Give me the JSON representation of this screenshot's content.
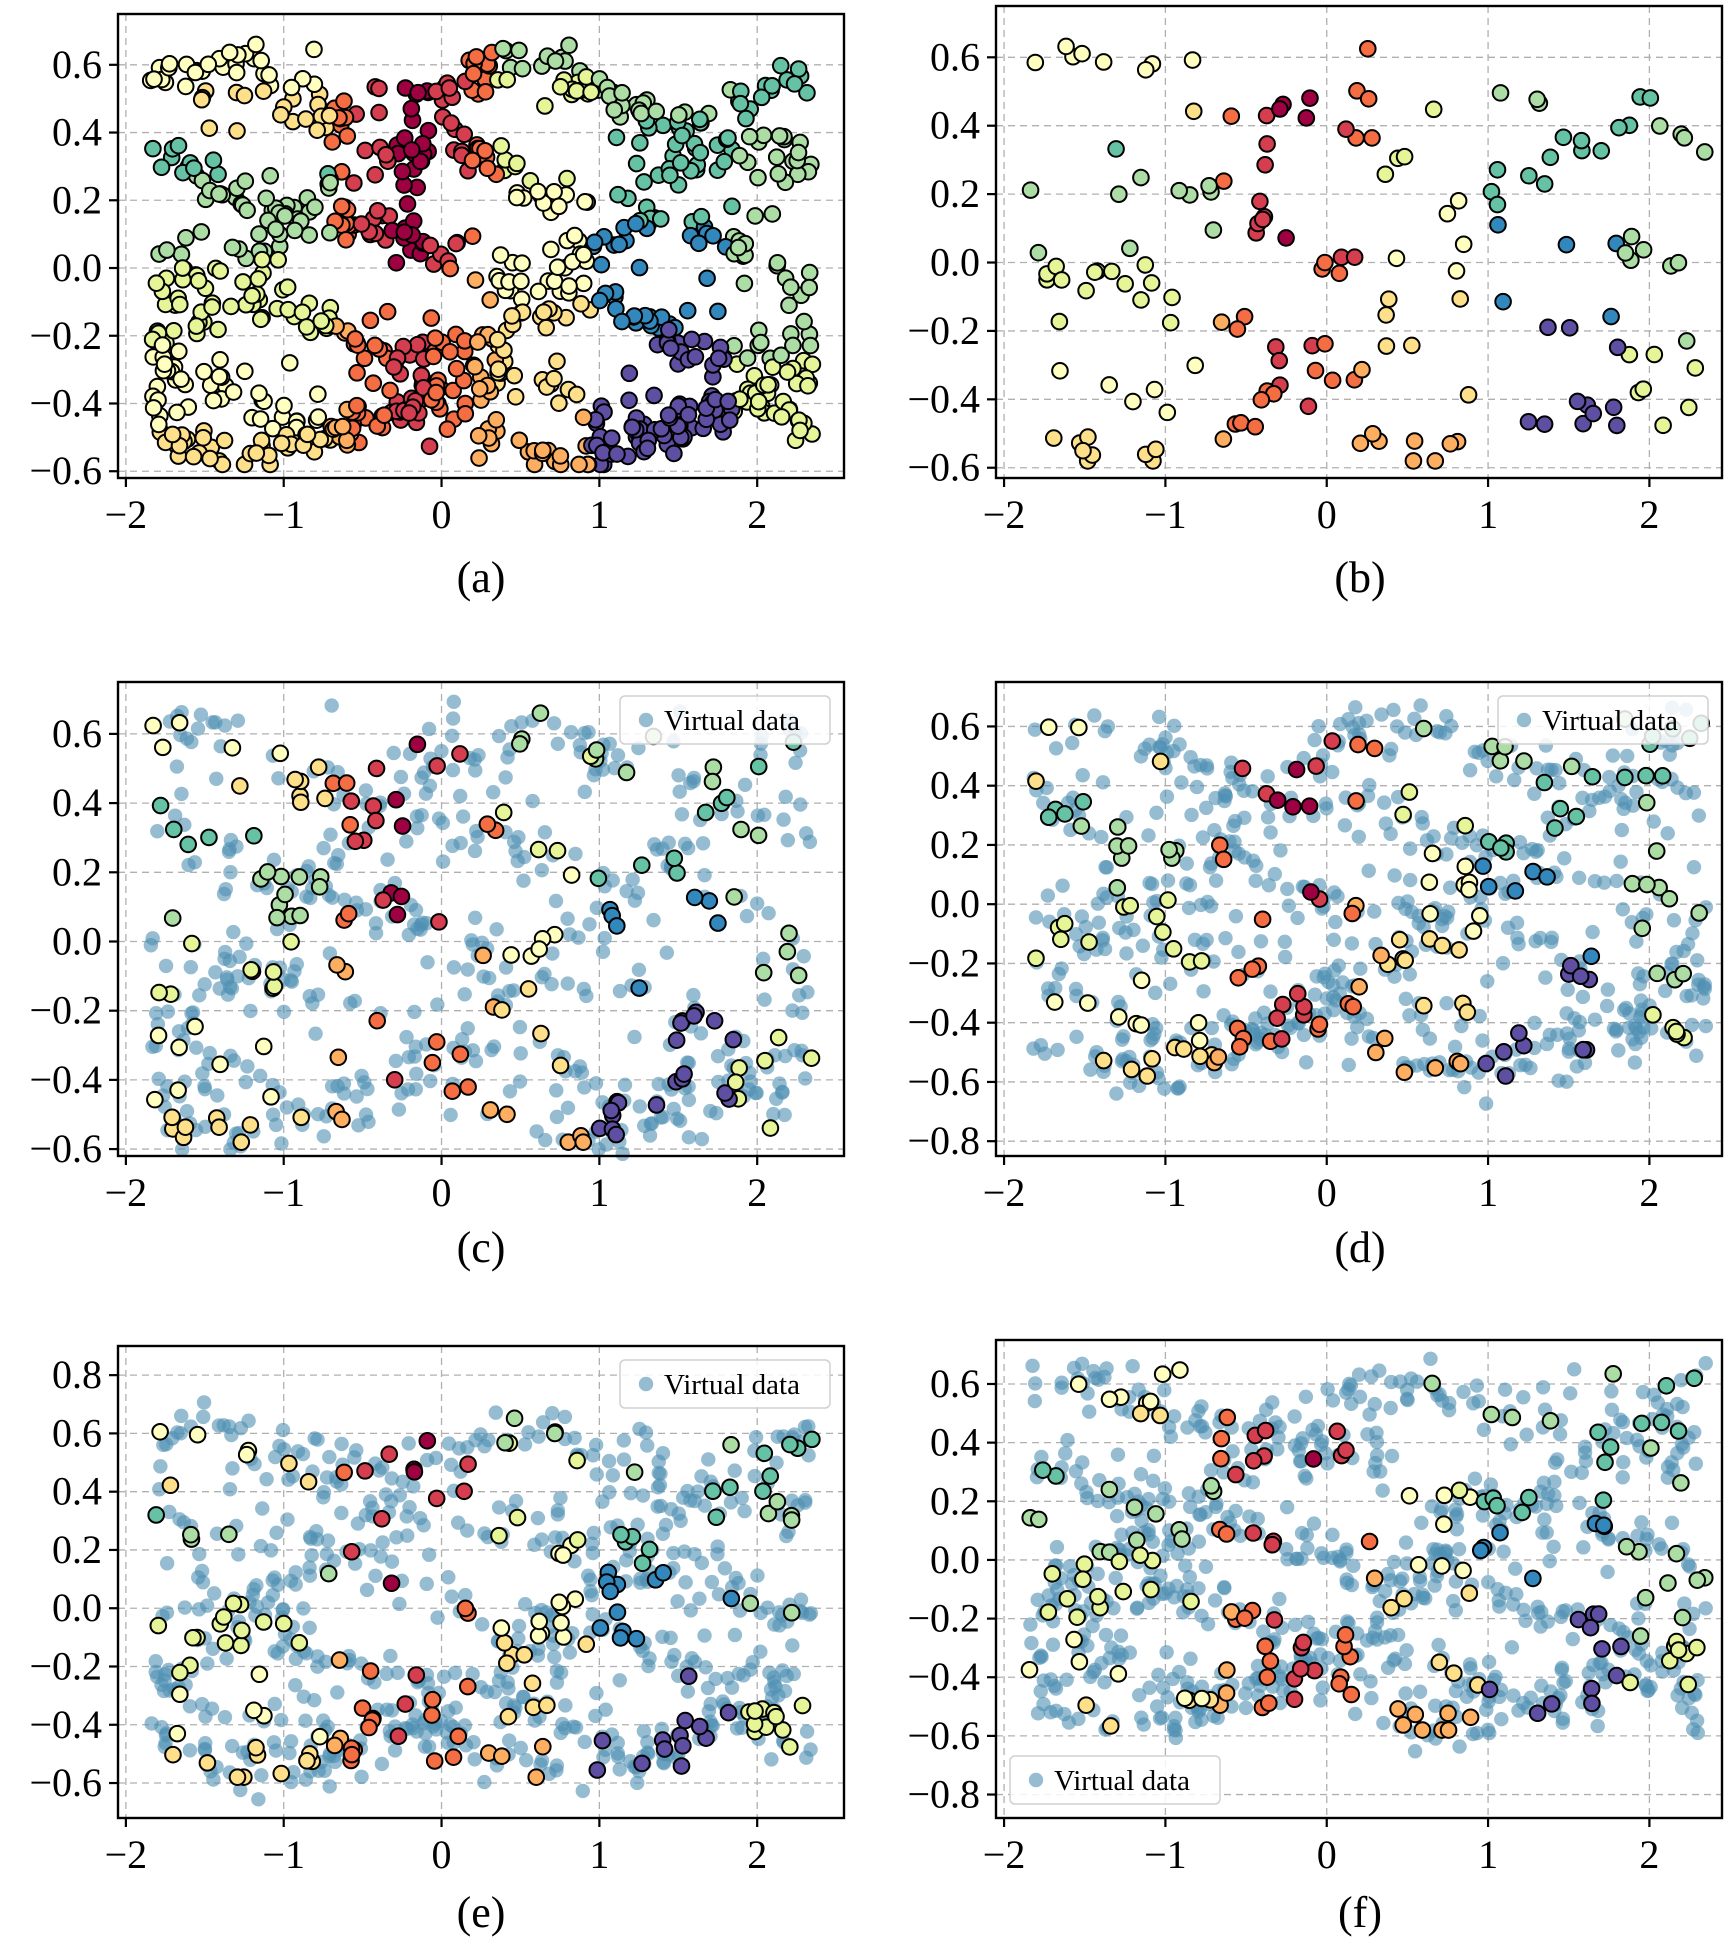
{
  "colors": {
    "virtual_fill": "#4f90b3",
    "virtual_alpha": 0.6,
    "point_edge": "#000000",
    "palette": [
      "#9e0142",
      "#d53e4f",
      "#f46d43",
      "#fdae61",
      "#fee08b",
      "#ffffbf",
      "#e6f598",
      "#abdda4",
      "#66c2a5",
      "#3288bd",
      "#5e4fa2"
    ]
  },
  "chart_data": [
    {
      "type": "scatter",
      "caption": "(a)",
      "legend": null,
      "xlim": [
        -2.05,
        2.55
      ],
      "ylim": [
        -0.62,
        0.75
      ],
      "xticks": [
        -2,
        -1,
        0,
        1,
        2
      ],
      "xtick_labels": [
        "−2",
        "−1",
        "0",
        "1",
        "2"
      ],
      "yticks": [
        -0.6,
        -0.4,
        -0.2,
        0.0,
        0.2,
        0.4,
        0.6
      ],
      "ytick_labels": [
        "−0.6",
        "−0.4",
        "−0.2",
        "0.0",
        "0.2",
        "0.4",
        "0.6"
      ],
      "grid": true,
      "labeled_points": 900,
      "virtual_points": 0,
      "seed": 11
    },
    {
      "type": "scatter",
      "caption": "(b)",
      "legend": null,
      "xlim": [
        -2.05,
        2.45
      ],
      "ylim": [
        -0.63,
        0.75
      ],
      "xticks": [
        -2,
        -1,
        0,
        1,
        2
      ],
      "xtick_labels": [
        "−2",
        "−1",
        "0",
        "1",
        "2"
      ],
      "yticks": [
        -0.6,
        -0.4,
        -0.2,
        0.0,
        0.2,
        0.4,
        0.6
      ],
      "ytick_labels": [
        "−0.6",
        "−0.4",
        "−0.2",
        "0.0",
        "0.2",
        "0.4",
        "0.6"
      ],
      "grid": true,
      "labeled_points": 170,
      "virtual_points": 0,
      "seed": 23
    },
    {
      "type": "scatter",
      "caption": "(c)",
      "legend": {
        "label": "Virtual data",
        "position": "upper right"
      },
      "xlim": [
        -2.05,
        2.55
      ],
      "ylim": [
        -0.62,
        0.75
      ],
      "xticks": [
        -2,
        -1,
        0,
        1,
        2
      ],
      "xtick_labels": [
        "−2",
        "−1",
        "0",
        "1",
        "2"
      ],
      "yticks": [
        -0.6,
        -0.4,
        -0.2,
        0.0,
        0.2,
        0.4,
        0.6
      ],
      "ytick_labels": [
        "−0.6",
        "−0.4",
        "−0.2",
        "0.0",
        "0.2",
        "0.4",
        "0.6"
      ],
      "grid": true,
      "labeled_points": 170,
      "virtual_points": 500,
      "seed": 37
    },
    {
      "type": "scatter",
      "caption": "(d)",
      "legend": {
        "label": "Virtual data",
        "position": "upper right"
      },
      "xlim": [
        -2.05,
        2.45
      ],
      "ylim": [
        -0.85,
        0.75
      ],
      "xticks": [
        -2,
        -1,
        0,
        1,
        2
      ],
      "xtick_labels": [
        "−2",
        "−1",
        "0",
        "1",
        "2"
      ],
      "yticks": [
        -0.8,
        -0.6,
        -0.4,
        -0.2,
        0.0,
        0.2,
        0.4,
        0.6
      ],
      "ytick_labels": [
        "−0.8",
        "−0.6",
        "−0.4",
        "−0.2",
        "0.0",
        "0.2",
        "0.4",
        "0.6"
      ],
      "grid": true,
      "labeled_points": 170,
      "virtual_points": 600,
      "seed": 51
    },
    {
      "type": "scatter",
      "caption": "(e)",
      "legend": {
        "label": "Virtual data",
        "position": "upper right"
      },
      "xlim": [
        -2.05,
        2.55
      ],
      "ylim": [
        -0.72,
        0.9
      ],
      "xticks": [
        -2,
        -1,
        0,
        1,
        2
      ],
      "xtick_labels": [
        "−2",
        "−1",
        "0",
        "1",
        "2"
      ],
      "yticks": [
        -0.6,
        -0.4,
        -0.2,
        0.0,
        0.2,
        0.4,
        0.6,
        0.8
      ],
      "ytick_labels": [
        "−0.6",
        "−0.4",
        "−0.2",
        "0.0",
        "0.2",
        "0.4",
        "0.6",
        "0.8"
      ],
      "grid": true,
      "labeled_points": 170,
      "virtual_points": 650,
      "seed": 67
    },
    {
      "type": "scatter",
      "caption": "(f)",
      "legend": {
        "label": "Virtual data",
        "position": "lower left"
      },
      "xlim": [
        -2.05,
        2.45
      ],
      "ylim": [
        -0.88,
        0.75
      ],
      "xticks": [
        -2,
        -1,
        0,
        1,
        2
      ],
      "xtick_labels": [
        "−2",
        "−1",
        "0",
        "1",
        "2"
      ],
      "yticks": [
        -0.8,
        -0.6,
        -0.4,
        -0.2,
        0.0,
        0.2,
        0.4,
        0.6
      ],
      "ytick_labels": [
        "−0.8",
        "−0.6",
        "−0.4",
        "−0.2",
        "0.0",
        "0.2",
        "0.4",
        "0.6"
      ],
      "grid": true,
      "labeled_points": 170,
      "virtual_points": 750,
      "seed": 83
    }
  ]
}
